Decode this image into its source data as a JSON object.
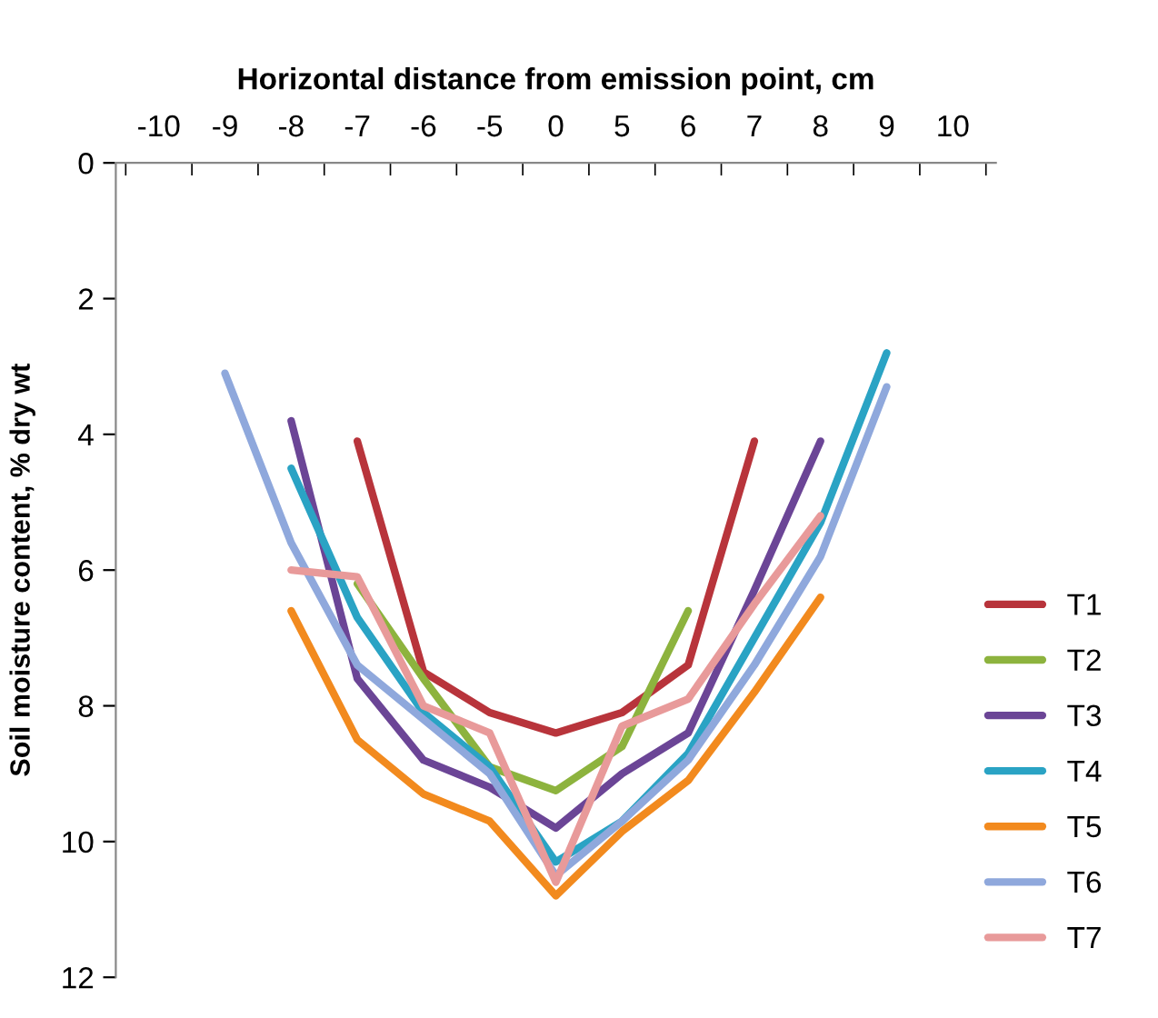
{
  "chart_data": {
    "type": "line",
    "xlabel": "Horizontal distance from emission point, cm",
    "ylabel": "Soil moisture content, % dry wt",
    "categories": [
      "-10",
      "-9",
      "-8",
      "-7",
      "-6",
      "-5",
      "0",
      "5",
      "6",
      "7",
      "8",
      "9",
      "10"
    ],
    "ylim": [
      12,
      0
    ],
    "yticks": [
      0,
      2,
      4,
      6,
      8,
      10,
      12
    ],
    "grid": false,
    "legend": "right",
    "marker": "none",
    "line_style": "solid",
    "series": [
      {
        "name": "T1",
        "color": "#b8343b",
        "values": [
          null,
          null,
          null,
          4.1,
          7.5,
          8.1,
          8.4,
          8.1,
          7.4,
          4.1,
          null,
          null,
          null
        ]
      },
      {
        "name": "T2",
        "color": "#8db33e",
        "values": [
          null,
          null,
          null,
          6.2,
          7.6,
          8.9,
          9.25,
          8.6,
          6.6,
          null,
          null,
          null,
          null
        ]
      },
      {
        "name": "T3",
        "color": "#6b4596",
        "values": [
          null,
          null,
          3.8,
          7.6,
          8.8,
          9.2,
          9.8,
          9.0,
          8.4,
          6.3,
          4.1,
          null,
          null
        ]
      },
      {
        "name": "T4",
        "color": "#2aa3c4",
        "values": [
          null,
          null,
          4.5,
          6.7,
          8.1,
          8.9,
          10.3,
          9.7,
          8.7,
          7.0,
          5.3,
          2.8,
          null
        ]
      },
      {
        "name": "T5",
        "color": "#f28a1e",
        "values": [
          null,
          null,
          6.6,
          8.5,
          9.3,
          9.7,
          10.8,
          9.85,
          9.1,
          7.8,
          6.4,
          null,
          null
        ]
      },
      {
        "name": "T6",
        "color": "#8fa8dc",
        "values": [
          null,
          3.1,
          5.6,
          7.4,
          8.2,
          9.0,
          10.5,
          9.7,
          8.8,
          7.4,
          5.8,
          3.3,
          null
        ]
      },
      {
        "name": "T7",
        "color": "#e89a9a",
        "values": [
          null,
          null,
          6.0,
          6.1,
          8.0,
          8.4,
          10.6,
          8.3,
          7.9,
          6.5,
          5.2,
          null,
          null
        ]
      }
    ]
  }
}
